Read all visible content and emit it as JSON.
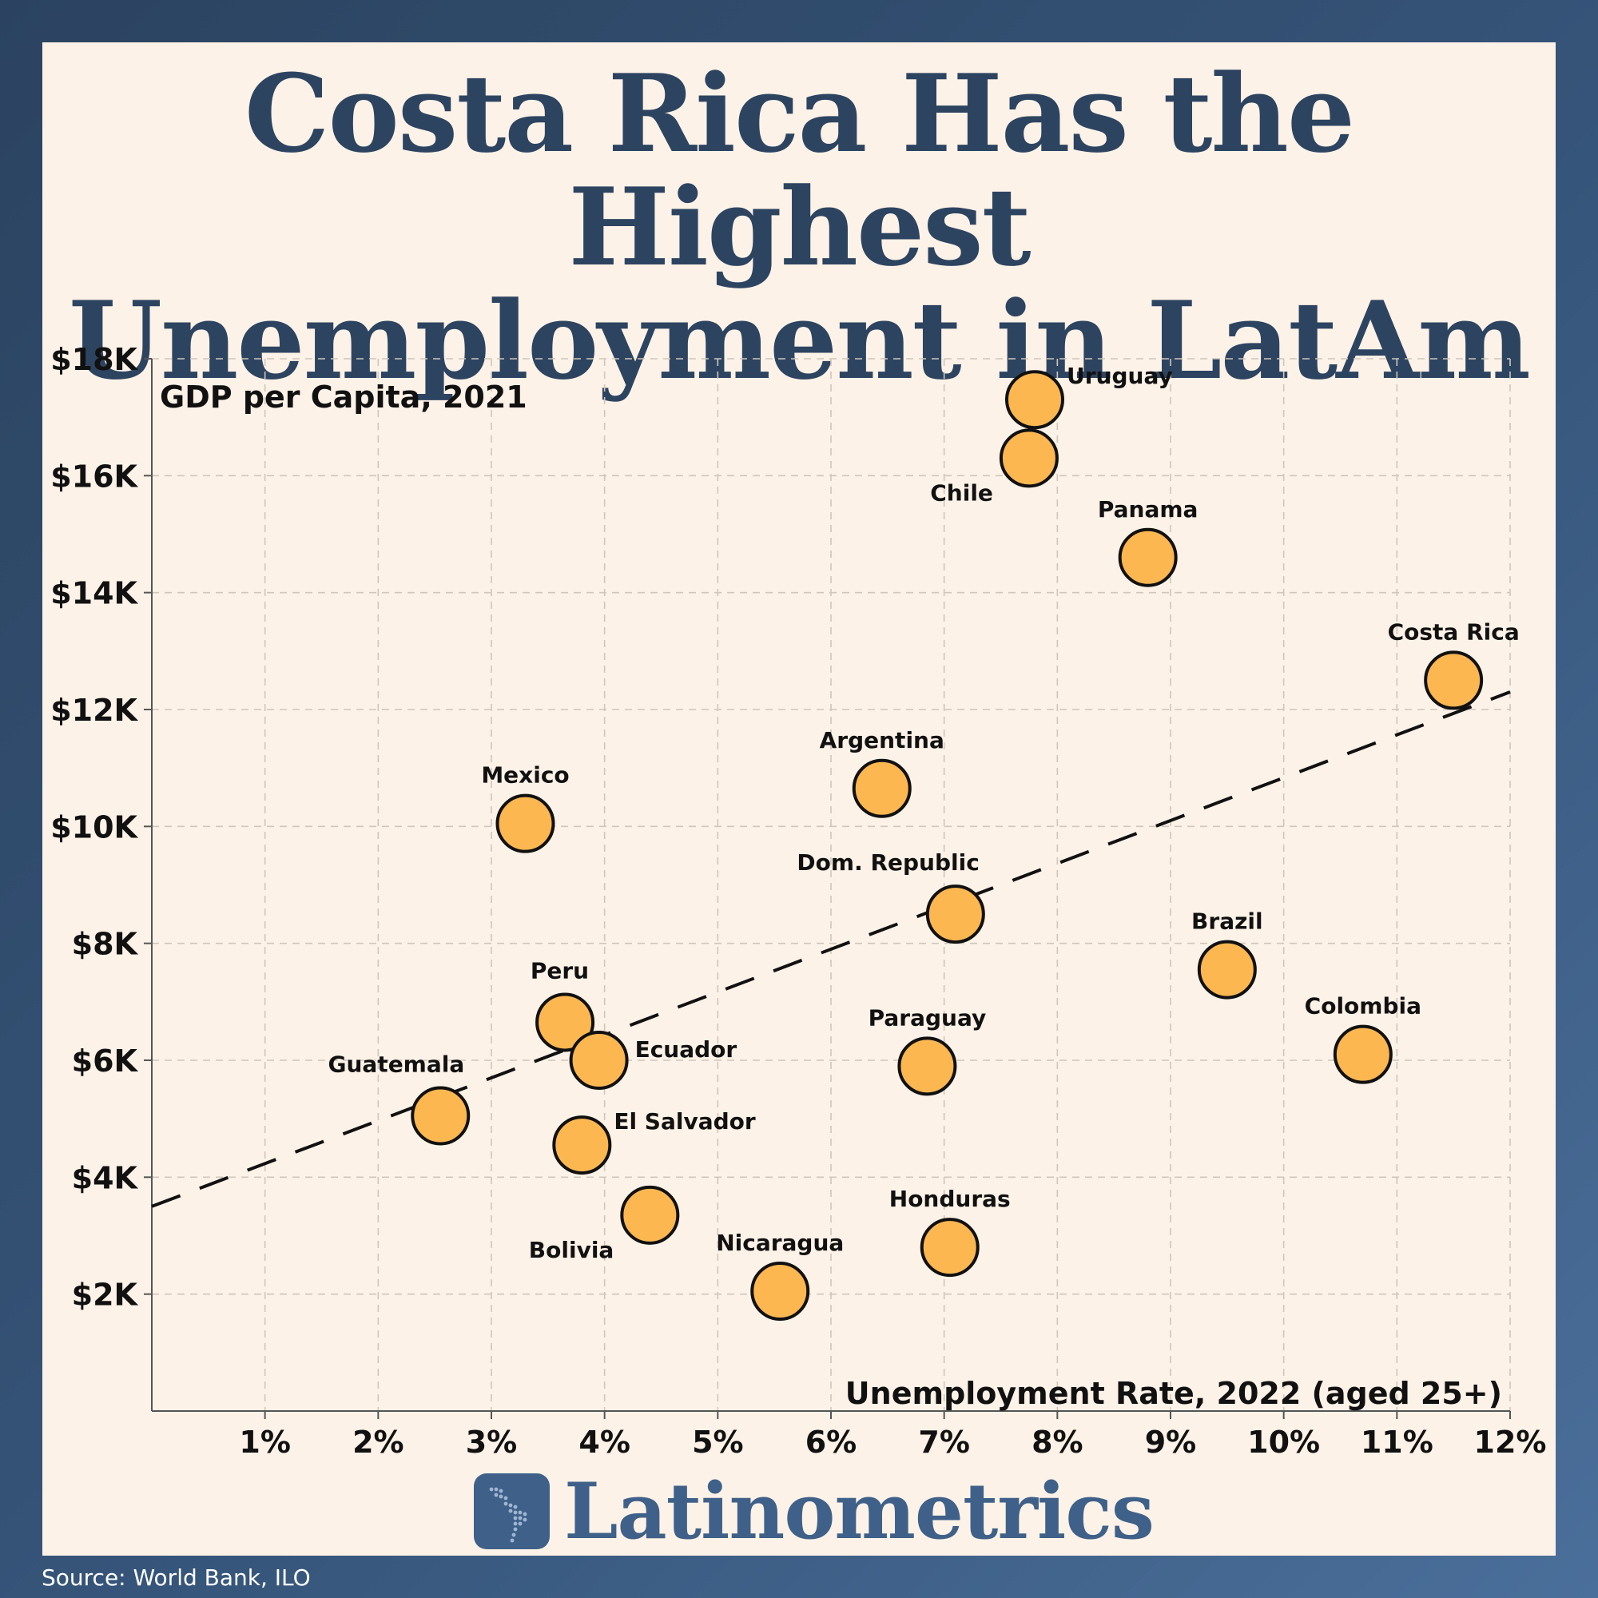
{
  "title_line1": "Costa Rica Has the Highest",
  "title_line2": "Unemployment in LatAm",
  "brand": "Latinometrics",
  "source": "Source: World Bank, ILO",
  "colors": {
    "point_fill": "#fdb750",
    "title": "#2d4461",
    "brand": "#3f6189"
  },
  "chart_data": {
    "type": "scatter",
    "title": "Costa Rica Has the Highest Unemployment in LatAm",
    "xlabel": "Unemployment Rate, 2022 (aged 25+)",
    "ylabel": "GDP per Capita, 2021",
    "xlim": [
      0,
      12
    ],
    "ylim": [
      0,
      18000
    ],
    "xticks": [
      {
        "value": 1,
        "label": "1%"
      },
      {
        "value": 2,
        "label": "2%"
      },
      {
        "value": 3,
        "label": "3%"
      },
      {
        "value": 4,
        "label": "4%"
      },
      {
        "value": 5,
        "label": "5%"
      },
      {
        "value": 6,
        "label": "6%"
      },
      {
        "value": 7,
        "label": "7%"
      },
      {
        "value": 8,
        "label": "8%"
      },
      {
        "value": 9,
        "label": "9%"
      },
      {
        "value": 10,
        "label": "10%"
      },
      {
        "value": 11,
        "label": "11%"
      },
      {
        "value": 12,
        "label": "12%"
      }
    ],
    "yticks": [
      {
        "value": 2000,
        "label": "$2K"
      },
      {
        "value": 4000,
        "label": "$4K"
      },
      {
        "value": 6000,
        "label": "$6K"
      },
      {
        "value": 8000,
        "label": "$8K"
      },
      {
        "value": 10000,
        "label": "$10K"
      },
      {
        "value": 12000,
        "label": "$12K"
      },
      {
        "value": 14000,
        "label": "$14K"
      },
      {
        "value": 16000,
        "label": "$16K"
      },
      {
        "value": 18000,
        "label": "$18K"
      }
    ],
    "grid": true,
    "trendline": {
      "x": [
        0,
        12
      ],
      "y": [
        3500,
        12300
      ],
      "style": "dashed"
    },
    "points": [
      {
        "label": "Uruguay",
        "x": 7.8,
        "y": 17300,
        "label_pos": "upper-right"
      },
      {
        "label": "Chile",
        "x": 7.75,
        "y": 16300,
        "label_pos": "lower-left"
      },
      {
        "label": "Panama",
        "x": 8.8,
        "y": 14600,
        "label_pos": "above"
      },
      {
        "label": "Costa Rica",
        "x": 11.5,
        "y": 12500,
        "label_pos": "above"
      },
      {
        "label": "Argentina",
        "x": 6.45,
        "y": 10650,
        "label_pos": "above"
      },
      {
        "label": "Mexico",
        "x": 3.3,
        "y": 10050,
        "label_pos": "above"
      },
      {
        "label": "Dom. Republic",
        "x": 7.1,
        "y": 8500,
        "label_pos": "upper-left"
      },
      {
        "label": "Brazil",
        "x": 9.5,
        "y": 7550,
        "label_pos": "above"
      },
      {
        "label": "Peru",
        "x": 3.65,
        "y": 6650,
        "label_pos": "upper-left"
      },
      {
        "label": "Colombia",
        "x": 10.7,
        "y": 6100,
        "label_pos": "above"
      },
      {
        "label": "Ecuador",
        "x": 3.95,
        "y": 6000,
        "label_pos": "right"
      },
      {
        "label": "Paraguay",
        "x": 6.85,
        "y": 5900,
        "label_pos": "above"
      },
      {
        "label": "Guatemala",
        "x": 2.55,
        "y": 5050,
        "label_pos": "upper-left"
      },
      {
        "label": "El Salvador",
        "x": 3.8,
        "y": 4550,
        "label_pos": "upper-right"
      },
      {
        "label": "Bolivia",
        "x": 4.4,
        "y": 3350,
        "label_pos": "lower-left"
      },
      {
        "label": "Honduras",
        "x": 7.05,
        "y": 2800,
        "label_pos": "above"
      },
      {
        "label": "Nicaragua",
        "x": 5.55,
        "y": 2050,
        "label_pos": "above"
      }
    ]
  }
}
